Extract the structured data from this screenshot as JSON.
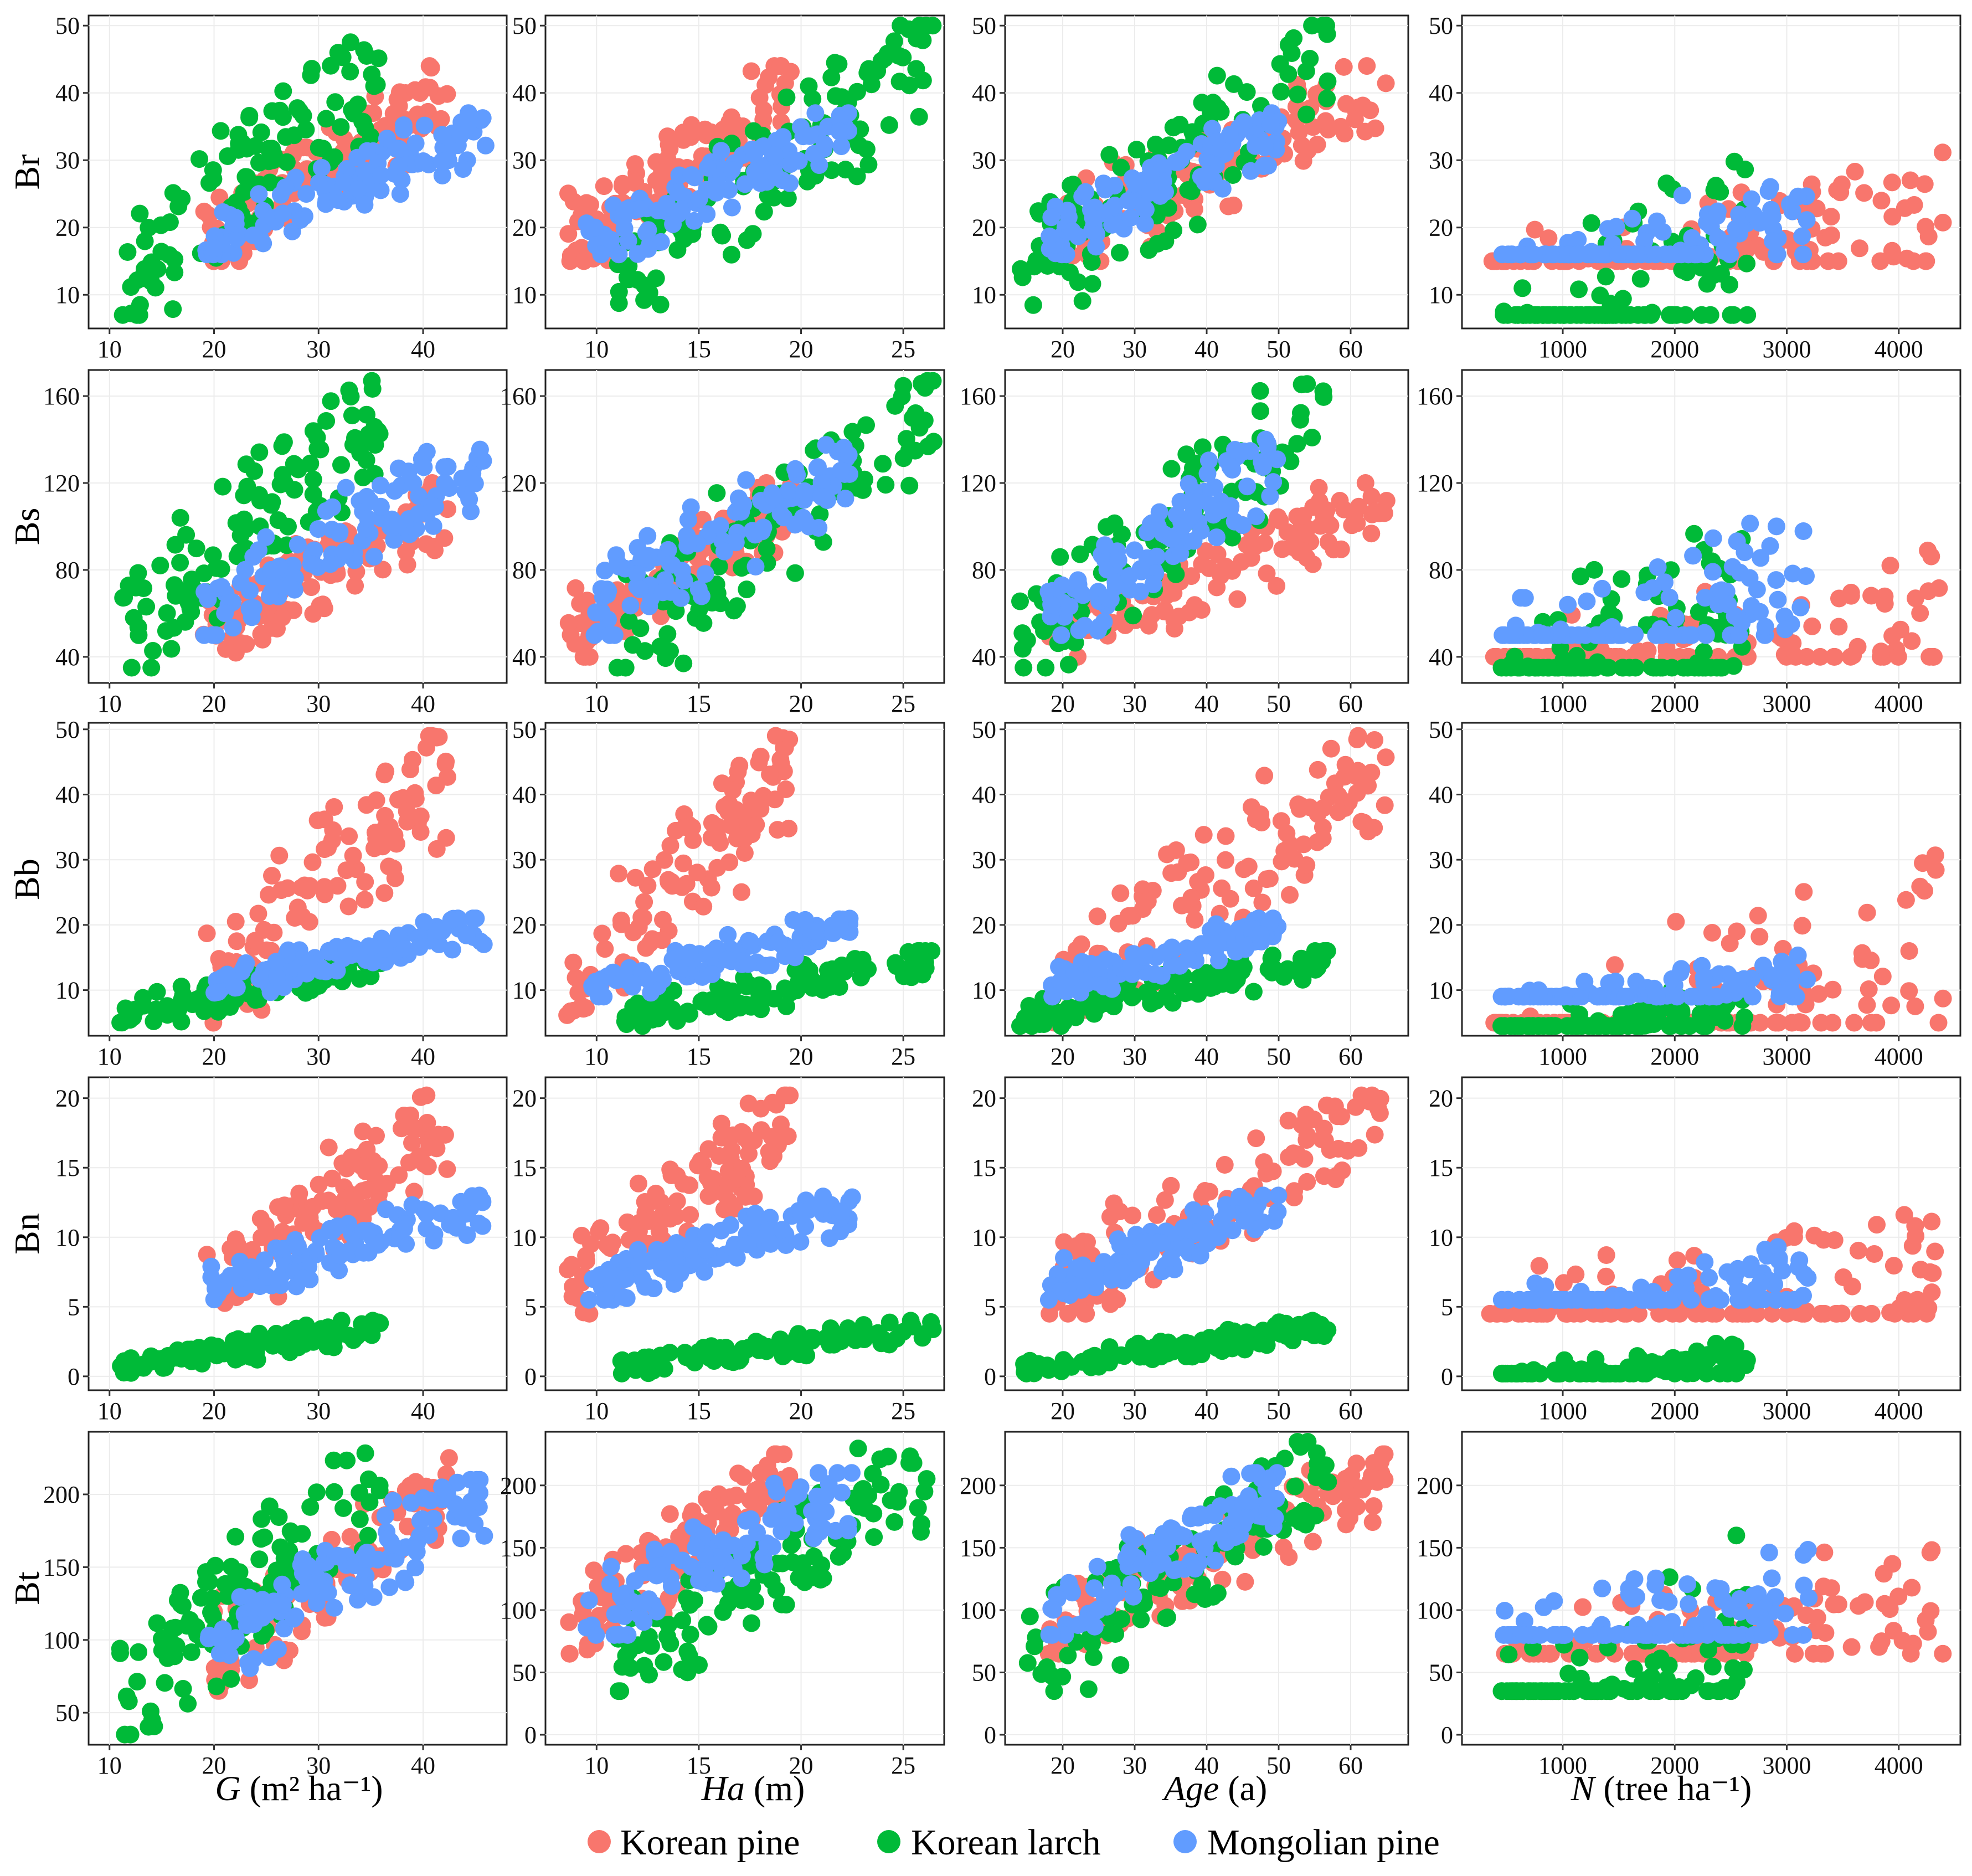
{
  "chart_data": {
    "type": "scatter",
    "rows": [
      "Br",
      "Bs",
      "Bb",
      "Bn",
      "Bt"
    ],
    "columns": [
      {
        "name": "G",
        "title_italic": "G",
        "title_rest": " (m² ha⁻¹)",
        "ticks": [
          10,
          20,
          30,
          40
        ],
        "xlim": [
          8,
          48
        ]
      },
      {
        "name": "Ha",
        "title_italic": "Ha",
        "title_rest": " (m)",
        "ticks": [
          10,
          15,
          20,
          25
        ],
        "xlim": [
          7.5,
          27
        ]
      },
      {
        "name": "Age",
        "title_italic": "Age",
        "title_rest": " (a)",
        "ticks": [
          20,
          30,
          40,
          50,
          60
        ],
        "xlim": [
          12,
          68
        ]
      },
      {
        "name": "N",
        "title_italic": "N",
        "title_rest": " (tree ha⁻¹)",
        "ticks": [
          1000,
          2000,
          3000,
          4000
        ],
        "xlim": [
          100,
          4550
        ]
      }
    ],
    "row_axes": [
      {
        "row": "Br",
        "ticks": [
          10,
          20,
          30,
          40,
          50
        ],
        "ylim": [
          5,
          51.5
        ]
      },
      {
        "row": "Bs",
        "ticks": [
          40,
          80,
          120,
          160
        ],
        "ylim": [
          28,
          172
        ]
      },
      {
        "row": "Bb",
        "ticks": [
          10,
          20,
          30,
          40,
          50
        ],
        "ylim": [
          3,
          51
        ]
      },
      {
        "row": "Bn",
        "ticks": [
          0,
          5,
          10,
          15,
          20
        ],
        "ylim": [
          -1,
          21.5
        ]
      },
      {
        "row": "Bt",
        "ticks": [
          50,
          100,
          150,
          200
        ],
        "ylim": [
          28,
          243
        ]
      }
    ],
    "row_axes_override": [
      {
        "row": "Bt",
        "col": "Ha",
        "ticks": [
          0,
          50,
          100,
          150,
          200
        ],
        "ylim": [
          -8,
          243
        ]
      },
      {
        "row": "Bt",
        "col": "Age",
        "ticks": [
          0,
          50,
          100,
          150,
          200
        ],
        "ylim": [
          -8,
          243
        ]
      },
      {
        "row": "Bt",
        "col": "N",
        "ticks": [
          0,
          50,
          100,
          150,
          200
        ],
        "ylim": [
          -8,
          243
        ]
      }
    ],
    "series": [
      {
        "name": "Korean pine",
        "color": "#F8766D",
        "x": {
          "G": [
            [
              19,
              42.5
            ]
          ],
          "Ha": [
            [
              8.5,
              19.5
            ]
          ],
          "Age": [
            [
              18,
              65
            ]
          ],
          "N": [
            [
              350,
              4400
            ]
          ]
        },
        "y": {
          "Br": [
            [
              15,
              44
            ]
          ],
          "Bs": [
            [
              40,
              120
            ]
          ],
          "Bb": [
            [
              5,
              49
            ]
          ],
          "Bn": [
            [
              4.5,
              20.2
            ]
          ],
          "Bt": [
            [
              65,
              225
            ]
          ]
        }
      },
      {
        "name": "Korean larch",
        "color": "#00BA38",
        "x": {
          "G": [
            [
              11,
              36
            ]
          ],
          "Ha": [
            [
              11,
              26.5
            ]
          ],
          "Age": [
            [
              14,
              57
            ]
          ],
          "N": [
            [
              450,
              2650
            ]
          ]
        },
        "y": {
          "Br": [
            [
              7,
              50
            ]
          ],
          "Bs": [
            [
              35,
              167
            ]
          ],
          "Bb": [
            [
              4.5,
              16
            ]
          ],
          "Bn": [
            [
              0.2,
              4
            ]
          ],
          "Bt": [
            [
              35,
              235
            ]
          ]
        }
      },
      {
        "name": "Mongolian pine",
        "color": "#619CFF",
        "x": {
          "G": [
            [
              19,
              46
            ]
          ],
          "Ha": [
            [
              9.5,
              22.5
            ]
          ],
          "Age": [
            [
              18,
              50
            ]
          ],
          "N": [
            [
              450,
              3200
            ]
          ]
        },
        "y": {
          "Br": [
            [
              16,
              37
            ]
          ],
          "Bs": [
            [
              50,
              140
            ]
          ],
          "Bb": [
            [
              9,
              21
            ]
          ],
          "Bn": [
            [
              5.5,
              13
            ]
          ],
          "Bt": [
            [
              80,
              210
            ]
          ]
        }
      }
    ],
    "legend": {
      "position": "bottom",
      "items": [
        "Korean pine",
        "Korean larch",
        "Mongolian pine"
      ]
    }
  }
}
